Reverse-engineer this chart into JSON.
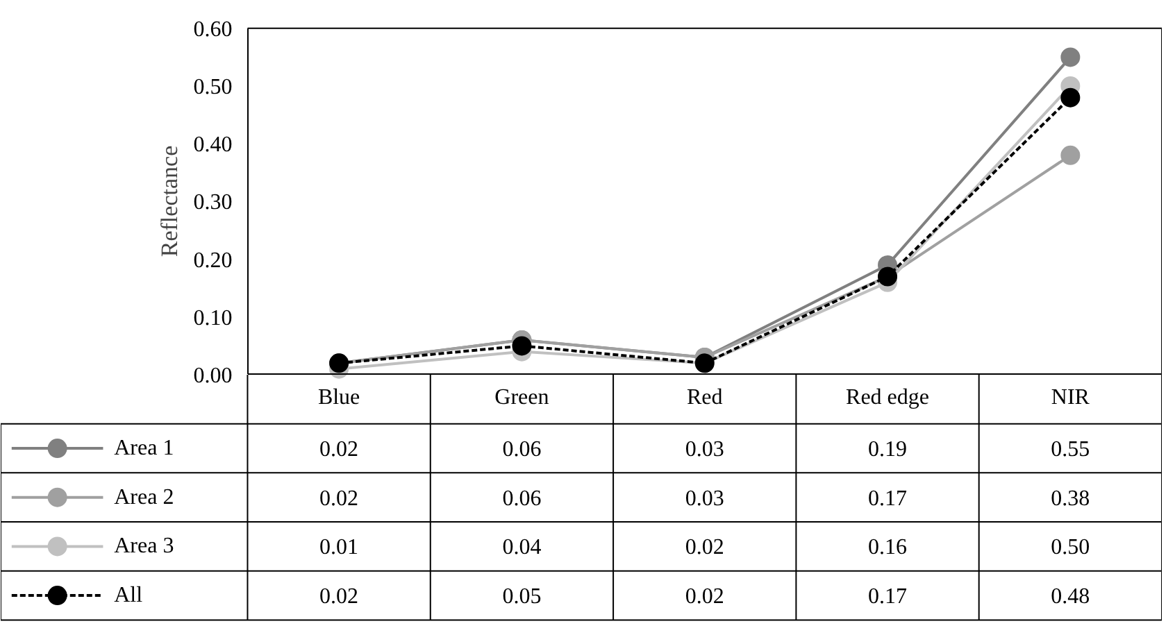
{
  "chart_data": {
    "type": "line",
    "ylabel": "Reflectance",
    "categories": [
      "Blue",
      "Green",
      "Red",
      "Red edge",
      "NIR"
    ],
    "series": [
      {
        "name": "Area 1",
        "color": "#808080",
        "values": [
          0.02,
          0.06,
          0.03,
          0.19,
          0.55
        ],
        "value_labels": [
          "0.02",
          "0.06",
          "0.03",
          "0.19",
          "0.55"
        ],
        "line_style": "solid"
      },
      {
        "name": "Area 2",
        "color": "#a0a0a0",
        "values": [
          0.02,
          0.06,
          0.03,
          0.17,
          0.38
        ],
        "value_labels": [
          "0.02",
          "0.06",
          "0.03",
          "0.17",
          "0.38"
        ],
        "line_style": "solid"
      },
      {
        "name": "Area 3",
        "color": "#c0c0c0",
        "values": [
          0.01,
          0.04,
          0.02,
          0.16,
          0.5
        ],
        "value_labels": [
          "0.01",
          "0.04",
          "0.02",
          "0.16",
          "0.50"
        ],
        "line_style": "solid"
      },
      {
        "name": "All",
        "color": "#000000",
        "values": [
          0.02,
          0.05,
          0.02,
          0.17,
          0.48
        ],
        "value_labels": [
          "0.02",
          "0.05",
          "0.02",
          "0.17",
          "0.48"
        ],
        "line_style": "dashed"
      }
    ],
    "ylim": [
      0,
      0.6
    ],
    "yticks": [
      {
        "value": 0,
        "label": "0.00"
      },
      {
        "value": 0.1,
        "label": "0.10"
      },
      {
        "value": 0.2,
        "label": "0.20"
      },
      {
        "value": 0.3,
        "label": "0.30"
      },
      {
        "value": 0.4,
        "label": "0.40"
      },
      {
        "value": 0.5,
        "label": "0.50"
      },
      {
        "value": 0.6,
        "label": "0.60"
      }
    ],
    "marker": "circle",
    "grid": false,
    "legend": "bottom left"
  }
}
